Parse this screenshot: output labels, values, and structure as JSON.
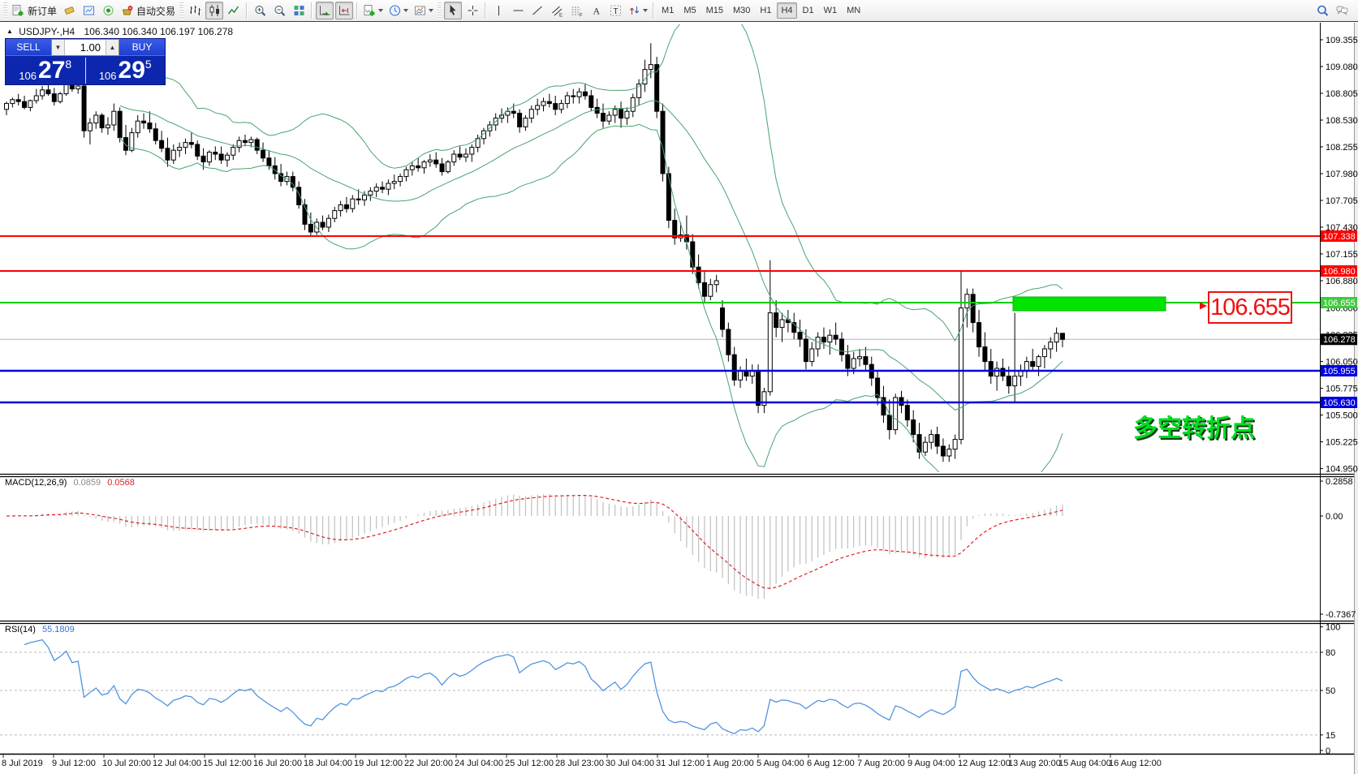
{
  "toolbar": {
    "left_icons": [
      {
        "icon": "new-order-icon",
        "label": "新订单"
      },
      {
        "icon": "eraser-icon"
      },
      {
        "icon": "market-watch-icon"
      },
      {
        "icon": "signal-icon"
      },
      {
        "icon": "autotrade-icon",
        "label": "自动交易"
      }
    ],
    "chart_type_icons": [
      {
        "icon": "bar-chart-icon"
      },
      {
        "icon": "candlestick-icon",
        "active": true
      },
      {
        "icon": "line-chart-icon"
      }
    ],
    "zoom_icons": [
      {
        "icon": "zoom-in-icon"
      },
      {
        "icon": "zoom-out-icon"
      },
      {
        "icon": "tile-windows-icon"
      }
    ],
    "scroll_icons": [
      {
        "icon": "auto-scroll-icon",
        "active": true
      },
      {
        "icon": "chart-shift-icon",
        "active": true
      }
    ],
    "dropdown_icons": [
      {
        "icon": "indicators-icon",
        "dropdown": true
      },
      {
        "icon": "periods-icon",
        "dropdown": true
      },
      {
        "icon": "template-icon",
        "dropdown": true
      }
    ],
    "draw_icons": [
      {
        "icon": "cursor-icon",
        "active": true
      },
      {
        "icon": "crosshair-icon"
      },
      {
        "icon": "vertical-line-icon"
      },
      {
        "icon": "horizontal-line-icon"
      },
      {
        "icon": "trendline-icon"
      },
      {
        "icon": "channel-icon"
      },
      {
        "icon": "fibonacci-icon"
      },
      {
        "icon": "text-icon"
      },
      {
        "icon": "text-label-icon"
      },
      {
        "icon": "arrows-icon",
        "dropdown": true
      }
    ],
    "timeframes": [
      {
        "label": "M1"
      },
      {
        "label": "M5"
      },
      {
        "label": "M15"
      },
      {
        "label": "M30"
      },
      {
        "label": "H1"
      },
      {
        "label": "H4",
        "active": true
      },
      {
        "label": "D1"
      },
      {
        "label": "W1"
      },
      {
        "label": "MN"
      }
    ],
    "right_icons": [
      {
        "icon": "search-icon"
      },
      {
        "icon": "chat-icon"
      }
    ]
  },
  "chart": {
    "marker": "▲",
    "symbol": "USDJPY-,H4",
    "ohlc": "106.340 106.340 106.197 106.278",
    "trade_panel": {
      "sell": "SELL",
      "buy": "BUY",
      "volume": "1.00",
      "bid": {
        "prefix": "106",
        "big": "27",
        "sup": "8"
      },
      "ask": {
        "prefix": "106",
        "big": "29",
        "sup": "5"
      }
    },
    "annotation_price": "106.655",
    "annotation_text": "多空转折点"
  },
  "macd_panel": {
    "label": "MACD(12,26,9)",
    "value_main": "0.0859",
    "value_signal": "0.0568",
    "axis": [
      "0.2858",
      "0.00",
      "-0.7367"
    ]
  },
  "rsi_panel": {
    "label": "RSI(14)",
    "value": "55.1809",
    "axis": [
      [
        "100",
        100
      ],
      [
        "80",
        80
      ],
      [
        "50",
        50
      ],
      [
        "15",
        15
      ],
      [
        "0",
        1
      ]
    ],
    "levels": [
      80,
      50,
      15
    ]
  },
  "chart_data": {
    "type": "candlestick",
    "symbol": "USDJPY-",
    "timeframe": "H4",
    "price_axis_ticks": [
      "109.355",
      "109.080",
      "108.805",
      "108.530",
      "108.255",
      "107.980",
      "107.705",
      "107.430",
      "107.155",
      "106.880",
      "106.600",
      "106.325",
      "106.050",
      "105.775",
      "105.500",
      "105.225",
      "104.950"
    ],
    "levels": [
      {
        "price": 107.338,
        "label": "107.338",
        "color": "#ff0000",
        "width": 2
      },
      {
        "price": 106.98,
        "label": "106.980",
        "color": "#ff0000",
        "width": 2
      },
      {
        "price": 106.655,
        "label": "106.655",
        "color": "#00cc00",
        "width": 2
      },
      {
        "price": 105.955,
        "label": "105.955",
        "color": "#0000e0",
        "width": 2.4
      },
      {
        "price": 105.63,
        "label": "105.630",
        "color": "#0000e0",
        "width": 2.4
      }
    ],
    "highlight_zone": {
      "price": 106.655,
      "color": "#00e400"
    },
    "current_price": {
      "value": 106.278,
      "label": "106.278"
    },
    "time_axis": [
      "8 Jul 2019",
      "9 Jul 12:00",
      "10 Jul 20:00",
      "12 Jul 04:00",
      "15 Jul 12:00",
      "16 Jul 20:00",
      "18 Jul 04:00",
      "19 Jul 12:00",
      "22 Jul 20:00",
      "24 Jul 04:00",
      "25 Jul 12:00",
      "28 Jul 23:00",
      "30 Jul 04:00",
      "31 Jul 12:00",
      "1 Aug 20:00",
      "5 Aug 04:00",
      "6 Aug 12:00",
      "7 Aug 20:00",
      "9 Aug 04:00",
      "12 Aug 12:00",
      "13 Aug 20:00",
      "15 Aug 04:00",
      "16 Aug 12:00"
    ],
    "indicators": {
      "bollinger": {
        "period": 20,
        "deviation": 2,
        "color": "#4ba36f"
      },
      "macd": {
        "fast": 12,
        "slow": 26,
        "signal": 9
      },
      "rsi": {
        "period": 14
      }
    },
    "candles": [
      [
        108.64,
        108.72,
        108.58,
        108.7
      ],
      [
        108.7,
        108.76,
        108.66,
        108.74
      ],
      [
        108.74,
        108.8,
        108.68,
        108.72
      ],
      [
        108.72,
        108.78,
        108.64,
        108.66
      ],
      [
        108.66,
        108.74,
        108.62,
        108.73
      ],
      [
        108.73,
        108.85,
        108.7,
        108.78
      ],
      [
        108.78,
        108.88,
        108.74,
        108.84
      ],
      [
        108.84,
        108.92,
        108.78,
        108.8
      ],
      [
        108.8,
        108.86,
        108.68,
        108.72
      ],
      [
        108.72,
        108.82,
        108.7,
        108.8
      ],
      [
        108.8,
        108.99,
        108.78,
        108.94
      ],
      [
        108.94,
        108.97,
        108.82,
        108.85
      ],
      [
        108.85,
        108.93,
        108.8,
        108.88
      ],
      [
        108.88,
        108.9,
        108.35,
        108.42
      ],
      [
        108.42,
        108.55,
        108.28,
        108.5
      ],
      [
        108.5,
        108.62,
        108.44,
        108.58
      ],
      [
        108.58,
        108.6,
        108.4,
        108.45
      ],
      [
        108.45,
        108.56,
        108.38,
        108.48
      ],
      [
        108.48,
        108.7,
        108.42,
        108.62
      ],
      [
        108.62,
        108.66,
        108.3,
        108.35
      ],
      [
        108.35,
        108.48,
        108.17,
        108.22
      ],
      [
        108.22,
        108.45,
        108.2,
        108.4
      ],
      [
        108.4,
        108.58,
        108.35,
        108.52
      ],
      [
        108.52,
        108.6,
        108.44,
        108.5
      ],
      [
        108.5,
        108.62,
        108.4,
        108.44
      ],
      [
        108.44,
        108.5,
        108.28,
        108.32
      ],
      [
        108.32,
        108.42,
        108.2,
        108.24
      ],
      [
        108.24,
        108.35,
        108.05,
        108.12
      ],
      [
        108.12,
        108.28,
        108.08,
        108.22
      ],
      [
        108.22,
        108.3,
        108.15,
        108.25
      ],
      [
        108.25,
        108.34,
        108.18,
        108.3
      ],
      [
        108.3,
        108.4,
        108.24,
        108.28
      ],
      [
        108.28,
        108.32,
        108.12,
        108.16
      ],
      [
        108.16,
        108.24,
        108.02,
        108.1
      ],
      [
        108.1,
        108.22,
        108.06,
        108.2
      ],
      [
        108.2,
        108.26,
        108.12,
        108.18
      ],
      [
        108.18,
        108.26,
        108.08,
        108.12
      ],
      [
        108.12,
        108.2,
        108.05,
        108.17
      ],
      [
        108.17,
        108.28,
        108.12,
        108.25
      ],
      [
        108.25,
        108.36,
        108.2,
        108.32
      ],
      [
        108.32,
        108.38,
        108.26,
        108.3
      ],
      [
        108.3,
        108.36,
        108.25,
        108.33
      ],
      [
        108.33,
        108.35,
        108.18,
        108.22
      ],
      [
        108.22,
        108.3,
        108.1,
        108.14
      ],
      [
        108.14,
        108.22,
        108.02,
        108.06
      ],
      [
        108.06,
        108.15,
        107.92,
        107.98
      ],
      [
        107.98,
        108.08,
        107.85,
        107.9
      ],
      [
        107.9,
        108.0,
        107.86,
        107.95
      ],
      [
        107.95,
        108.0,
        107.8,
        107.84
      ],
      [
        107.84,
        107.9,
        107.62,
        107.66
      ],
      [
        107.66,
        107.72,
        107.4,
        107.46
      ],
      [
        107.46,
        107.58,
        107.34,
        107.38
      ],
      [
        107.38,
        107.52,
        107.35,
        107.48
      ],
      [
        107.48,
        107.55,
        107.4,
        107.43
      ],
      [
        107.43,
        107.56,
        107.38,
        107.52
      ],
      [
        107.52,
        107.64,
        107.48,
        107.6
      ],
      [
        107.6,
        107.7,
        107.54,
        107.66
      ],
      [
        107.66,
        107.74,
        107.58,
        107.62
      ],
      [
        107.62,
        107.76,
        107.58,
        107.72
      ],
      [
        107.72,
        107.82,
        107.66,
        107.71
      ],
      [
        107.71,
        107.8,
        107.65,
        107.76
      ],
      [
        107.76,
        107.84,
        107.7,
        107.8
      ],
      [
        107.8,
        107.88,
        107.74,
        107.84
      ],
      [
        107.84,
        107.9,
        107.78,
        107.82
      ],
      [
        107.82,
        107.92,
        107.76,
        107.88
      ],
      [
        107.88,
        107.97,
        107.82,
        107.9
      ],
      [
        107.9,
        107.98,
        107.85,
        107.95
      ],
      [
        107.95,
        108.05,
        107.9,
        108.02
      ],
      [
        108.02,
        108.1,
        107.96,
        108.06
      ],
      [
        108.06,
        108.14,
        108.0,
        108.04
      ],
      [
        108.04,
        108.12,
        107.98,
        108.1
      ],
      [
        108.1,
        108.18,
        108.05,
        108.12
      ],
      [
        108.12,
        108.2,
        108.04,
        108.08
      ],
      [
        108.08,
        108.14,
        107.96,
        108.0
      ],
      [
        108.0,
        108.12,
        107.98,
        108.1
      ],
      [
        108.1,
        108.22,
        108.06,
        108.18
      ],
      [
        108.18,
        108.26,
        108.12,
        108.15
      ],
      [
        108.15,
        108.24,
        108.1,
        108.18
      ],
      [
        108.18,
        108.28,
        108.1,
        108.25
      ],
      [
        108.25,
        108.38,
        108.2,
        108.34
      ],
      [
        108.34,
        108.45,
        108.28,
        108.42
      ],
      [
        108.42,
        108.52,
        108.36,
        108.48
      ],
      [
        108.48,
        108.6,
        108.42,
        108.55
      ],
      [
        108.55,
        108.65,
        108.5,
        108.58
      ],
      [
        108.58,
        108.66,
        108.5,
        108.62
      ],
      [
        108.62,
        108.7,
        108.55,
        108.6
      ],
      [
        108.6,
        108.64,
        108.4,
        108.46
      ],
      [
        108.46,
        108.58,
        108.42,
        108.55
      ],
      [
        108.55,
        108.68,
        108.5,
        108.64
      ],
      [
        108.64,
        108.75,
        108.58,
        108.68
      ],
      [
        108.68,
        108.76,
        108.62,
        108.72
      ],
      [
        108.72,
        108.8,
        108.66,
        108.7
      ],
      [
        108.7,
        108.78,
        108.58,
        108.64
      ],
      [
        108.64,
        108.74,
        108.6,
        108.7
      ],
      [
        108.7,
        108.82,
        108.65,
        108.78
      ],
      [
        108.78,
        108.85,
        108.7,
        108.77
      ],
      [
        108.77,
        108.86,
        108.7,
        108.82
      ],
      [
        108.82,
        108.9,
        108.74,
        108.78
      ],
      [
        108.78,
        108.84,
        108.62,
        108.66
      ],
      [
        108.66,
        108.75,
        108.55,
        108.6
      ],
      [
        108.6,
        108.7,
        108.45,
        108.52
      ],
      [
        108.52,
        108.62,
        108.48,
        108.58
      ],
      [
        108.58,
        108.68,
        108.5,
        108.64
      ],
      [
        108.64,
        108.72,
        108.45,
        108.55
      ],
      [
        108.55,
        108.66,
        108.48,
        108.62
      ],
      [
        108.62,
        108.8,
        108.56,
        108.76
      ],
      [
        108.76,
        108.95,
        108.68,
        108.9
      ],
      [
        108.9,
        109.15,
        108.82,
        109.05
      ],
      [
        109.05,
        109.32,
        108.96,
        109.1
      ],
      [
        109.1,
        109.18,
        108.55,
        108.62
      ],
      [
        108.62,
        108.7,
        107.9,
        107.98
      ],
      [
        107.98,
        108.05,
        107.42,
        107.5
      ],
      [
        107.5,
        107.62,
        107.25,
        107.32
      ],
      [
        107.32,
        107.48,
        107.28,
        107.35
      ],
      [
        107.35,
        107.55,
        107.2,
        107.28
      ],
      [
        107.28,
        107.36,
        106.95,
        107.02
      ],
      [
        107.02,
        107.15,
        106.8,
        106.86
      ],
      [
        106.86,
        106.98,
        106.65,
        106.72
      ],
      [
        106.72,
        106.9,
        106.68,
        106.84
      ],
      [
        106.84,
        106.94,
        106.76,
        106.88
      ],
      [
        106.6,
        106.68,
        106.3,
        106.38
      ],
      [
        106.38,
        106.45,
        106.05,
        106.12
      ],
      [
        106.12,
        106.2,
        105.8,
        105.86
      ],
      [
        105.86,
        106.0,
        105.78,
        105.95
      ],
      [
        105.95,
        106.08,
        105.85,
        105.9
      ],
      [
        105.9,
        106.02,
        105.82,
        105.95
      ],
      [
        105.95,
        106.02,
        105.52,
        105.6
      ],
      [
        105.6,
        105.78,
        105.52,
        105.74
      ],
      [
        105.74,
        107.09,
        105.7,
        106.55
      ],
      [
        106.55,
        106.68,
        106.3,
        106.4
      ],
      [
        106.4,
        106.55,
        106.25,
        106.48
      ],
      [
        106.48,
        106.58,
        106.35,
        106.45
      ],
      [
        106.45,
        106.55,
        106.28,
        106.35
      ],
      [
        106.35,
        106.48,
        106.2,
        106.28
      ],
      [
        106.28,
        106.38,
        105.97,
        106.05
      ],
      [
        106.05,
        106.25,
        106.0,
        106.18
      ],
      [
        106.18,
        106.35,
        106.1,
        106.3
      ],
      [
        106.3,
        106.4,
        106.18,
        106.25
      ],
      [
        106.25,
        106.38,
        106.12,
        106.32
      ],
      [
        106.32,
        106.45,
        106.22,
        106.28
      ],
      [
        106.28,
        106.35,
        106.05,
        106.12
      ],
      [
        106.12,
        106.22,
        105.9,
        105.98
      ],
      [
        105.98,
        106.15,
        105.92,
        106.08
      ],
      [
        106.08,
        106.18,
        106.0,
        106.1
      ],
      [
        106.1,
        106.2,
        105.95,
        106.02
      ],
      [
        106.02,
        106.1,
        105.8,
        105.88
      ],
      [
        105.88,
        105.96,
        105.6,
        105.68
      ],
      [
        105.68,
        105.8,
        105.42,
        105.5
      ],
      [
        105.5,
        105.66,
        105.25,
        105.35
      ],
      [
        105.35,
        105.72,
        105.3,
        105.68
      ],
      [
        105.68,
        105.75,
        105.52,
        105.6
      ],
      [
        105.6,
        105.66,
        105.38,
        105.45
      ],
      [
        105.45,
        105.55,
        105.22,
        105.3
      ],
      [
        105.3,
        105.42,
        105.05,
        105.12
      ],
      [
        105.12,
        105.28,
        105.08,
        105.22
      ],
      [
        105.22,
        105.35,
        105.15,
        105.3
      ],
      [
        105.3,
        105.38,
        105.1,
        105.18
      ],
      [
        105.18,
        105.26,
        105.02,
        105.08
      ],
      [
        105.08,
        105.2,
        105.02,
        105.15
      ],
      [
        105.15,
        105.3,
        105.05,
        105.25
      ],
      [
        105.25,
        106.98,
        105.2,
        106.6
      ],
      [
        106.6,
        106.8,
        106.4,
        106.74
      ],
      [
        106.74,
        106.8,
        106.35,
        106.45
      ],
      [
        106.45,
        106.58,
        106.1,
        106.2
      ],
      [
        106.2,
        106.35,
        105.95,
        106.05
      ],
      [
        106.05,
        106.18,
        105.82,
        105.9
      ],
      [
        105.9,
        106.05,
        105.75,
        105.98
      ],
      [
        105.98,
        106.08,
        105.85,
        105.9
      ],
      [
        105.9,
        106.0,
        105.72,
        105.8
      ],
      [
        105.8,
        106.55,
        105.63,
        105.9
      ],
      [
        105.9,
        106.02,
        105.8,
        105.95
      ],
      [
        105.95,
        106.1,
        105.88,
        106.05
      ],
      [
        106.05,
        106.18,
        105.95,
        106.0
      ],
      [
        106.0,
        106.12,
        105.9,
        106.1
      ],
      [
        106.1,
        106.22,
        105.98,
        106.18
      ],
      [
        106.18,
        106.3,
        106.08,
        106.25
      ],
      [
        106.25,
        106.4,
        106.15,
        106.34
      ],
      [
        106.34,
        106.34,
        106.197,
        106.278
      ]
    ]
  }
}
